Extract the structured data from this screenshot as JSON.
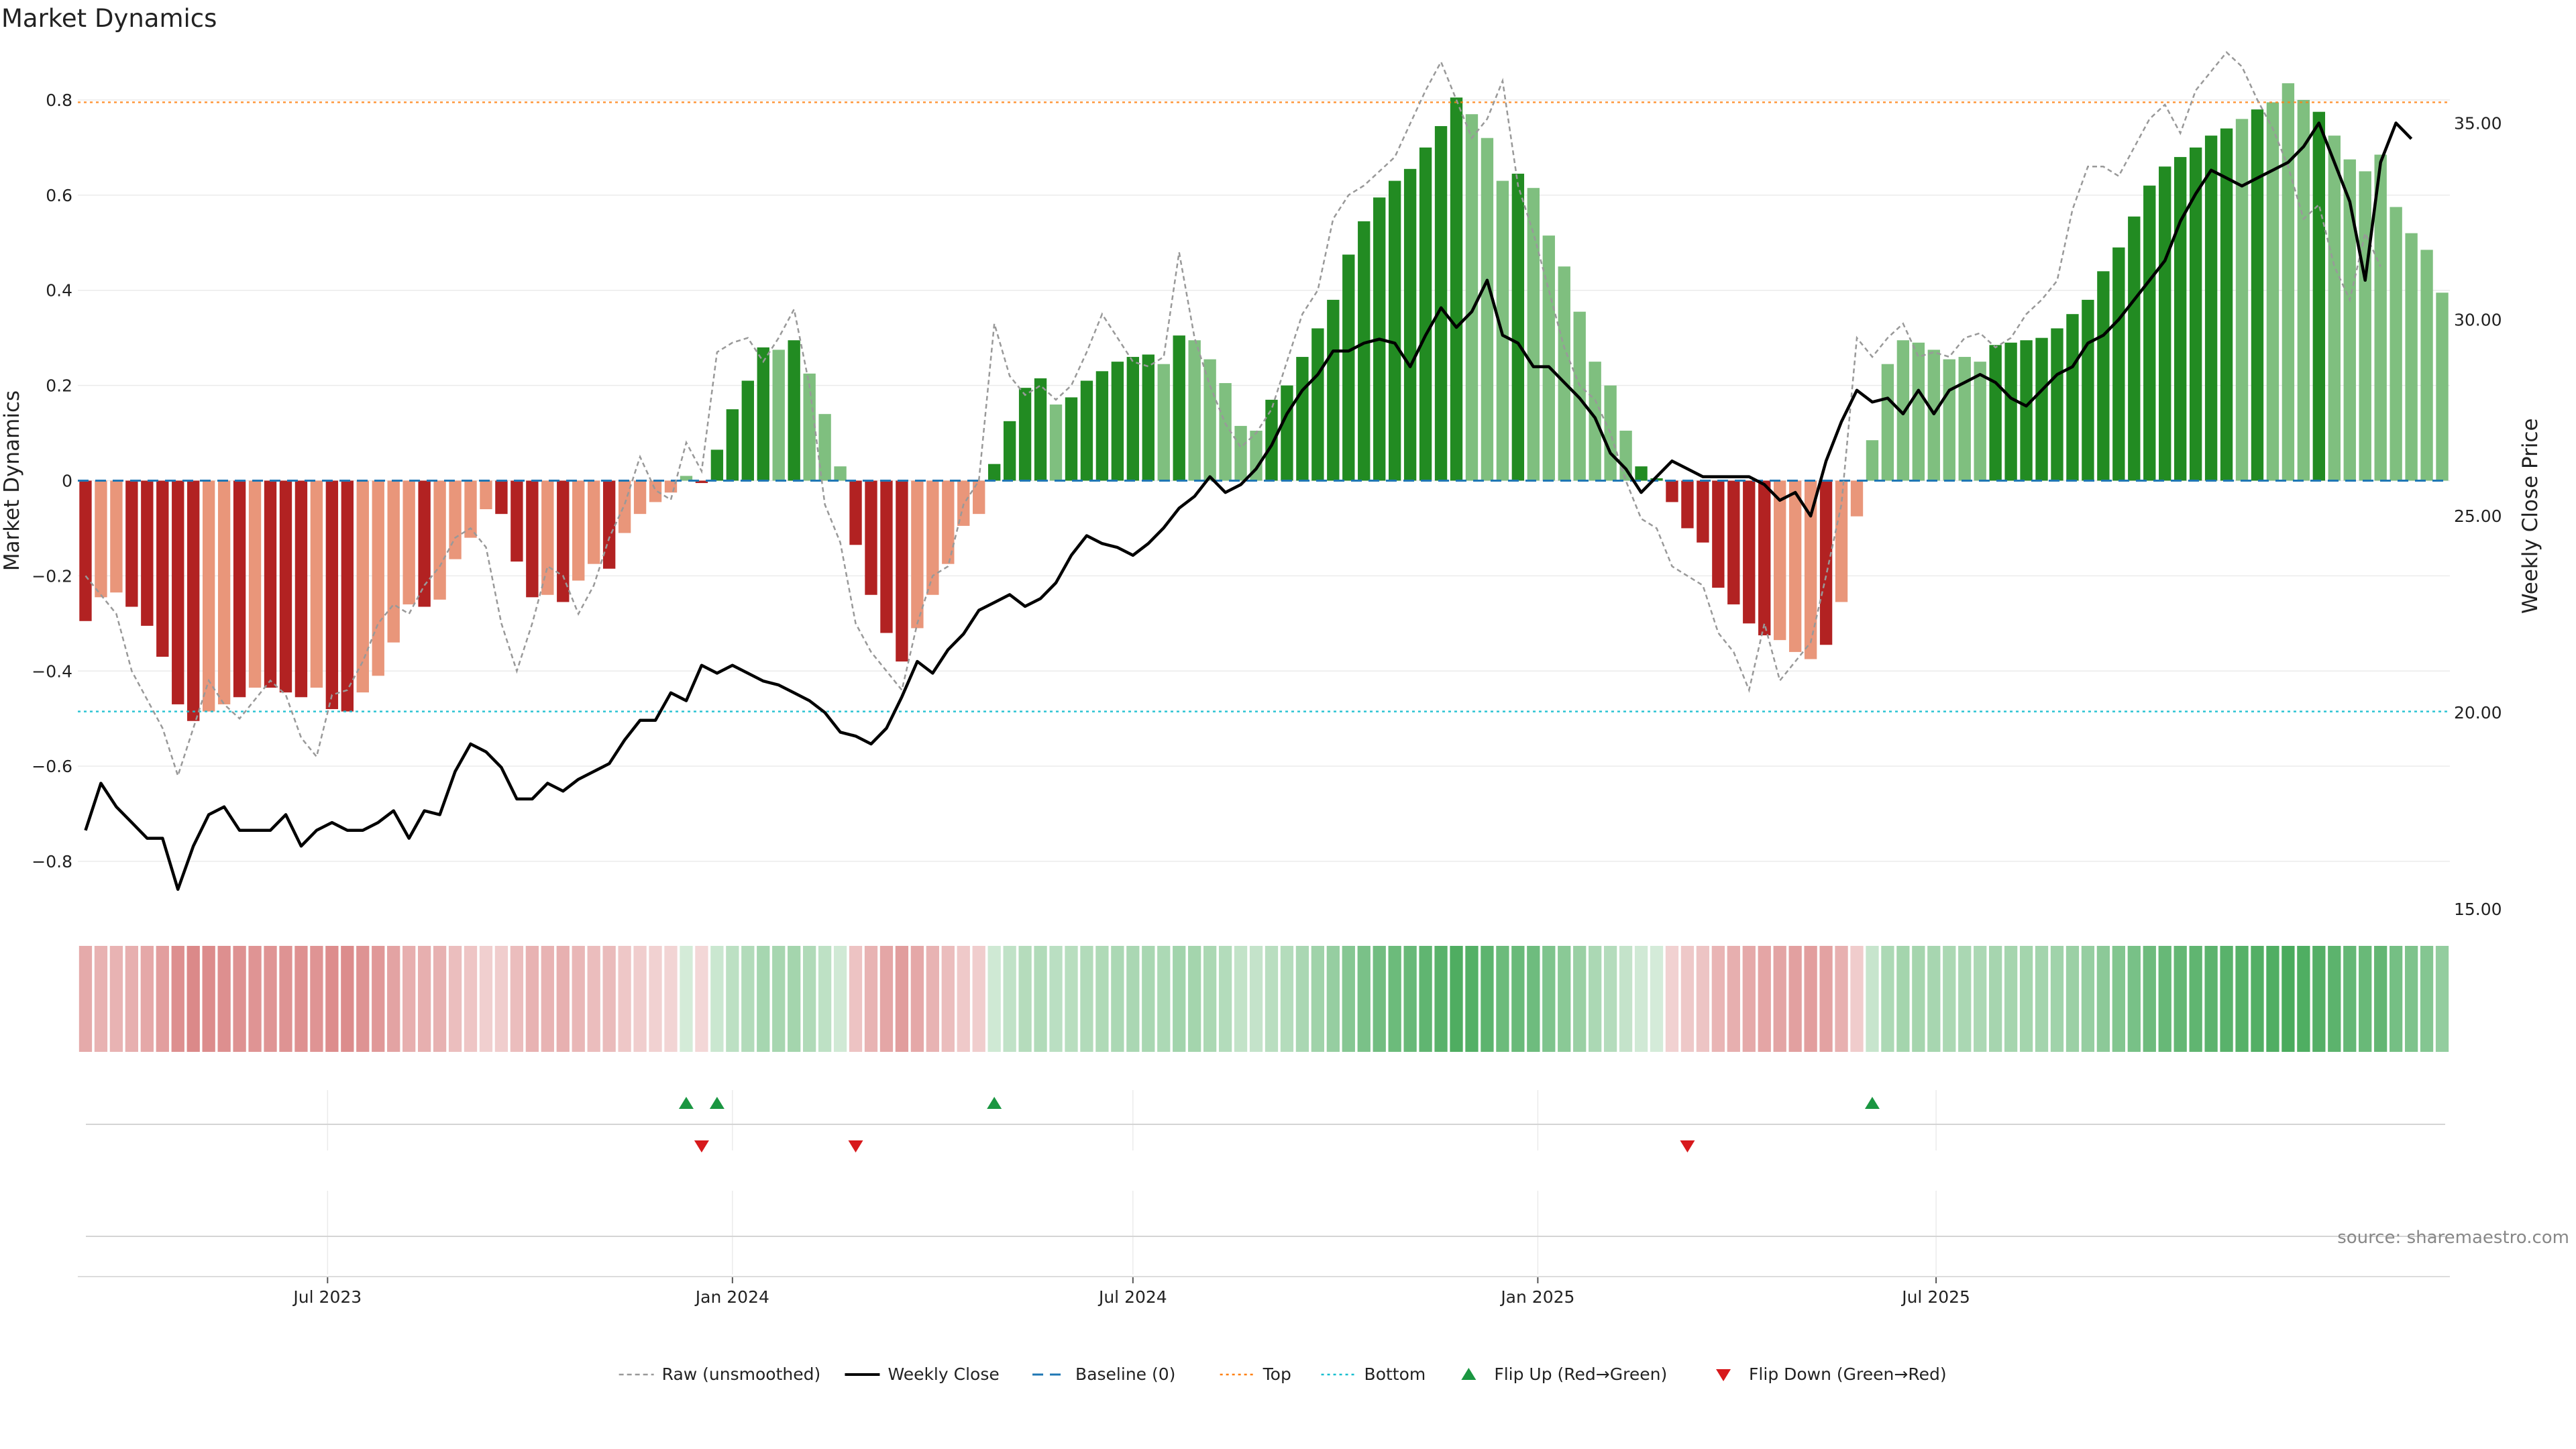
{
  "chart_data": {
    "type": "bar",
    "title": "Market Dynamics",
    "ylabel_left": "Market Dynamics",
    "ylabel_right": "Weekly Close Price",
    "source": "source: sharemaestro.com",
    "ylim_left": [
      -0.9,
      0.9
    ],
    "yticks_left": [
      -0.8,
      -0.6,
      -0.4,
      -0.2,
      0,
      0.2,
      0.4,
      0.6,
      0.8
    ],
    "ytick_labels_left": [
      "−0.8",
      "−0.6",
      "−0.4",
      "−0.2",
      "0",
      "0.2",
      "0.4",
      "0.6",
      "0.8"
    ],
    "ylim_right": [
      15,
      36.8
    ],
    "yticks_right": [
      15,
      20,
      25,
      30,
      35
    ],
    "ytick_labels_right": [
      "15.00",
      "20.00",
      "25.00",
      "30.00",
      "35.00"
    ],
    "x_start_date": "2023-03-13",
    "xticks": [
      {
        "date": "2023-07-01",
        "label": "Jul 2023"
      },
      {
        "date": "2024-01-01",
        "label": "Jan 2024"
      },
      {
        "date": "2024-07-01",
        "label": "Jul 2024"
      },
      {
        "date": "2025-01-01",
        "label": "Jan 2025"
      },
      {
        "date": "2025-07-01",
        "label": "Jul 2025"
      }
    ],
    "top_line": 0.795,
    "bottom_line": -0.485,
    "baseline": 0,
    "colors": {
      "strong_green": "#228b22",
      "light_green": "#7fbf7f",
      "strong_red": "#b22222",
      "light_red": "#e9967a",
      "close_line": "#000000",
      "raw_line": "#999999",
      "baseline": "#1f77b4",
      "top": "#ff7f0e",
      "bottom": "#17becf",
      "flip_up": "#1a9641",
      "flip_down": "#d7191c"
    },
    "smoothed": [
      -0.295,
      -0.245,
      -0.235,
      -0.265,
      -0.305,
      -0.37,
      -0.47,
      -0.505,
      -0.485,
      -0.47,
      -0.455,
      -0.435,
      -0.435,
      -0.445,
      -0.455,
      -0.435,
      -0.48,
      -0.485,
      -0.445,
      -0.41,
      -0.34,
      -0.26,
      -0.265,
      -0.25,
      -0.165,
      -0.12,
      -0.06,
      -0.07,
      -0.17,
      -0.245,
      -0.24,
      -0.255,
      -0.21,
      -0.175,
      -0.185,
      -0.11,
      -0.07,
      -0.045,
      -0.025,
      0.01,
      -0.005,
      0.065,
      0.15,
      0.21,
      0.28,
      0.275,
      0.295,
      0.225,
      0.14,
      0.03,
      -0.135,
      -0.24,
      -0.32,
      -0.38,
      -0.31,
      -0.24,
      -0.175,
      -0.095,
      -0.07,
      0.035,
      0.125,
      0.195,
      0.215,
      0.16,
      0.175,
      0.21,
      0.23,
      0.25,
      0.26,
      0.265,
      0.245,
      0.305,
      0.295,
      0.255,
      0.205,
      0.115,
      0.105,
      0.17,
      0.2,
      0.26,
      0.32,
      0.38,
      0.475,
      0.545,
      0.595,
      0.63,
      0.655,
      0.7,
      0.745,
      0.805,
      0.77,
      0.72,
      0.63,
      0.645,
      0.615,
      0.515,
      0.45,
      0.355,
      0.25,
      0.2,
      0.105,
      0.03,
      0.005,
      -0.045,
      -0.1,
      -0.13,
      -0.225,
      -0.26,
      -0.3,
      -0.325,
      -0.335,
      -0.36,
      -0.375,
      -0.345,
      -0.255,
      -0.075,
      0.085,
      0.245,
      0.295,
      0.29,
      0.275,
      0.255,
      0.26,
      0.25,
      0.285,
      0.29,
      0.295,
      0.3,
      0.32,
      0.35,
      0.38,
      0.44,
      0.49,
      0.555,
      0.62,
      0.66,
      0.68,
      0.7,
      0.725,
      0.74,
      0.76,
      0.78,
      0.795,
      0.835,
      0.8,
      0.775,
      0.725,
      0.675,
      0.65,
      0.685,
      0.575,
      0.52,
      0.485,
      0.395
    ],
    "bar_strength": [
      "strong",
      "light",
      "light",
      "strong",
      "strong",
      "strong",
      "strong",
      "strong",
      "light",
      "light",
      "strong",
      "light",
      "strong",
      "strong",
      "strong",
      "light",
      "strong",
      "strong",
      "light",
      "light",
      "light",
      "light",
      "strong",
      "light",
      "light",
      "light",
      "light",
      "strong",
      "strong",
      "strong",
      "light",
      "strong",
      "light",
      "light",
      "strong",
      "light",
      "light",
      "light",
      "light",
      "light",
      "strong",
      "strong",
      "strong",
      "strong",
      "strong",
      "light",
      "strong",
      "light",
      "light",
      "light",
      "strong",
      "strong",
      "strong",
      "strong",
      "light",
      "light",
      "light",
      "light",
      "light",
      "strong",
      "strong",
      "strong",
      "strong",
      "light",
      "strong",
      "strong",
      "strong",
      "strong",
      "strong",
      "strong",
      "light",
      "strong",
      "light",
      "light",
      "light",
      "light",
      "light",
      "strong",
      "strong",
      "strong",
      "strong",
      "strong",
      "strong",
      "strong",
      "strong",
      "strong",
      "strong",
      "strong",
      "strong",
      "strong",
      "light",
      "light",
      "light",
      "strong",
      "light",
      "light",
      "light",
      "light",
      "light",
      "light",
      "light",
      "strong",
      "strong",
      "strong",
      "strong",
      "strong",
      "strong",
      "strong",
      "strong",
      "strong",
      "light",
      "light",
      "light",
      "strong",
      "light",
      "light",
      "light",
      "light",
      "light",
      "light",
      "light",
      "light",
      "light",
      "light",
      "strong",
      "strong",
      "strong",
      "strong",
      "strong",
      "strong",
      "strong",
      "strong",
      "strong",
      "strong",
      "strong",
      "strong",
      "strong",
      "strong",
      "strong",
      "strong",
      "light",
      "strong",
      "light",
      "light",
      "light",
      "strong",
      "light",
      "light",
      "light",
      "light"
    ],
    "raw": [
      -0.2,
      -0.24,
      -0.28,
      -0.4,
      -0.46,
      -0.52,
      -0.62,
      -0.52,
      -0.42,
      -0.47,
      -0.5,
      -0.46,
      -0.42,
      -0.45,
      -0.54,
      -0.58,
      -0.45,
      -0.44,
      -0.38,
      -0.3,
      -0.26,
      -0.28,
      -0.22,
      -0.18,
      -0.12,
      -0.1,
      -0.14,
      -0.3,
      -0.4,
      -0.3,
      -0.18,
      -0.2,
      -0.28,
      -0.22,
      -0.12,
      -0.05,
      0.05,
      -0.02,
      -0.04,
      0.08,
      0.02,
      0.27,
      0.29,
      0.3,
      0.25,
      0.3,
      0.36,
      0.2,
      -0.05,
      -0.13,
      -0.3,
      -0.36,
      -0.4,
      -0.44,
      -0.3,
      -0.2,
      -0.18,
      -0.05,
      0.0,
      0.33,
      0.22,
      0.18,
      0.2,
      0.17,
      0.2,
      0.27,
      0.35,
      0.3,
      0.25,
      0.24,
      0.26,
      0.48,
      0.3,
      0.2,
      0.12,
      0.07,
      0.1,
      0.15,
      0.25,
      0.35,
      0.4,
      0.55,
      0.6,
      0.62,
      0.65,
      0.68,
      0.75,
      0.82,
      0.88,
      0.8,
      0.72,
      0.76,
      0.84,
      0.62,
      0.52,
      0.4,
      0.28,
      0.2,
      0.17,
      0.1,
      0.0,
      -0.08,
      -0.1,
      -0.18,
      -0.2,
      -0.22,
      -0.32,
      -0.36,
      -0.44,
      -0.3,
      -0.42,
      -0.38,
      -0.34,
      -0.2,
      -0.05,
      0.3,
      0.26,
      0.3,
      0.33,
      0.26,
      0.27,
      0.26,
      0.3,
      0.31,
      0.28,
      0.3,
      0.35,
      0.38,
      0.42,
      0.57,
      0.66,
      0.66,
      0.64,
      0.7,
      0.76,
      0.79,
      0.73,
      0.82,
      0.86,
      0.9,
      0.87,
      0.8,
      0.74,
      0.66,
      0.55,
      0.58,
      0.45,
      0.38,
      0.52,
      0.45
    ],
    "close": [
      17.0,
      18.2,
      17.6,
      17.2,
      16.8,
      16.8,
      15.5,
      16.6,
      17.4,
      17.6,
      17.0,
      17.0,
      17.0,
      17.4,
      16.6,
      17.0,
      17.2,
      17.0,
      17.0,
      17.2,
      17.5,
      16.8,
      17.5,
      17.4,
      18.5,
      19.2,
      19.0,
      18.6,
      17.8,
      17.8,
      18.2,
      18.0,
      18.3,
      18.5,
      18.7,
      19.3,
      19.8,
      19.8,
      20.5,
      20.3,
      21.2,
      21.0,
      21.2,
      21.0,
      20.8,
      20.7,
      20.5,
      20.3,
      20.0,
      19.5,
      19.4,
      19.2,
      19.6,
      20.4,
      21.3,
      21.0,
      21.6,
      22.0,
      22.6,
      22.8,
      23.0,
      22.7,
      22.9,
      23.3,
      24.0,
      24.5,
      24.3,
      24.2,
      24.0,
      24.3,
      24.7,
      25.2,
      25.5,
      26.0,
      25.6,
      25.8,
      26.2,
      26.8,
      27.6,
      28.2,
      28.6,
      29.2,
      29.2,
      29.4,
      29.5,
      29.4,
      28.8,
      29.6,
      30.3,
      29.8,
      30.2,
      31.0,
      29.6,
      29.4,
      28.8,
      28.8,
      28.4,
      28.0,
      27.5,
      26.6,
      26.2,
      25.6,
      26.0,
      26.4,
      26.2,
      26.0,
      26.0,
      26.0,
      26.0,
      25.8,
      25.4,
      25.6,
      25.0,
      26.4,
      27.4,
      28.2,
      27.9,
      28.0,
      27.6,
      28.2,
      27.6,
      28.2,
      28.4,
      28.6,
      28.4,
      28.0,
      27.8,
      28.2,
      28.6,
      28.8,
      29.4,
      29.6,
      30.0,
      30.5,
      31.0,
      31.5,
      32.5,
      33.2,
      33.8,
      33.6,
      33.4,
      33.6,
      33.8,
      34.0,
      34.4,
      35.0,
      34.0,
      33.0,
      31.0,
      34.0,
      35.0,
      34.6
    ],
    "heat_values": [
      -0.295,
      -0.245,
      -0.235,
      -0.265,
      -0.305,
      -0.37,
      -0.47,
      -0.505,
      -0.485,
      -0.47,
      -0.455,
      -0.435,
      -0.435,
      -0.445,
      -0.455,
      -0.435,
      -0.48,
      -0.485,
      -0.445,
      -0.41,
      -0.34,
      -0.26,
      -0.265,
      -0.25,
      -0.165,
      -0.12,
      -0.06,
      -0.07,
      -0.17,
      -0.245,
      -0.24,
      -0.255,
      -0.21,
      -0.175,
      -0.185,
      -0.11,
      -0.07,
      -0.045,
      -0.025,
      0.01,
      -0.005,
      0.065,
      0.15,
      0.21,
      0.28,
      0.275,
      0.295,
      0.225,
      0.14,
      0.03,
      -0.135,
      -0.24,
      -0.32,
      -0.38,
      -0.31,
      -0.24,
      -0.175,
      -0.095,
      -0.07,
      0.035,
      0.125,
      0.195,
      0.215,
      0.16,
      0.175,
      0.21,
      0.23,
      0.25,
      0.26,
      0.265,
      0.245,
      0.305,
      0.295,
      0.255,
      0.205,
      0.115,
      0.105,
      0.17,
      0.2,
      0.26,
      0.32,
      0.38,
      0.475,
      0.545,
      0.595,
      0.63,
      0.655,
      0.7,
      0.745,
      0.805,
      0.77,
      0.72,
      0.63,
      0.645,
      0.615,
      0.515,
      0.45,
      0.355,
      0.25,
      0.2,
      0.105,
      0.03,
      0.005,
      -0.045,
      -0.1,
      -0.13,
      -0.225,
      -0.26,
      -0.3,
      -0.325,
      -0.335,
      -0.36,
      -0.375,
      -0.345,
      -0.255,
      -0.075,
      0.085,
      0.245,
      0.295,
      0.29,
      0.275,
      0.255,
      0.26,
      0.25,
      0.285,
      0.29,
      0.295,
      0.3,
      0.32,
      0.35,
      0.38,
      0.44,
      0.49,
      0.555,
      0.62,
      0.66,
      0.68,
      0.7,
      0.725,
      0.74,
      0.76,
      0.78,
      0.795,
      0.835,
      0.8,
      0.775,
      0.725,
      0.675,
      0.65,
      0.685,
      0.575,
      0.52,
      0.485,
      0.395
    ],
    "flip_up_indices": [
      39,
      41,
      59,
      116
    ],
    "flip_down_indices": [
      40,
      50,
      104
    ],
    "legend": [
      {
        "label": "Raw (unsmoothed)",
        "kind": "raw"
      },
      {
        "label": "Weekly Close",
        "kind": "close"
      },
      {
        "label": "Baseline (0)",
        "kind": "baseline"
      },
      {
        "label": "Top",
        "kind": "top"
      },
      {
        "label": "Bottom",
        "kind": "bottom"
      },
      {
        "label": "Flip Up (Red→Green)",
        "kind": "flip_up"
      },
      {
        "label": "Flip Down (Green→Red)",
        "kind": "flip_down"
      }
    ]
  }
}
